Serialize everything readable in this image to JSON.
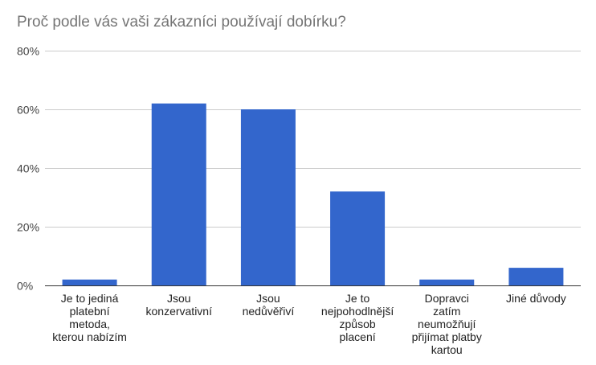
{
  "chart_data": {
    "type": "bar",
    "title": "Proč podle vás vaši zákazníci používají dobírku?",
    "xlabel": "",
    "ylabel": "",
    "categories": [
      [
        "Je to jediná",
        "platební",
        "metoda,",
        "kterou nabízím"
      ],
      [
        "Jsou",
        "konzervativní"
      ],
      [
        "Jsou",
        "nedůvěřiví"
      ],
      [
        "Je to",
        "nejpohodlnější",
        "způsob",
        "placení"
      ],
      [
        "Dopravci",
        "zatím",
        "neumožňují",
        "přijímat platby",
        "kartou"
      ],
      [
        "Jiné důvody"
      ]
    ],
    "values": [
      2,
      62,
      60,
      32,
      2,
      6
    ],
    "ylim": [
      0,
      80
    ],
    "yticks": [
      0,
      20,
      40,
      60,
      80
    ],
    "ytick_labels": [
      "0%",
      "20%",
      "40%",
      "60%",
      "80%"
    ],
    "grid": true,
    "bar_color": "#3366cc",
    "grid_color": "#cccccc",
    "axis_color": "#333333"
  }
}
